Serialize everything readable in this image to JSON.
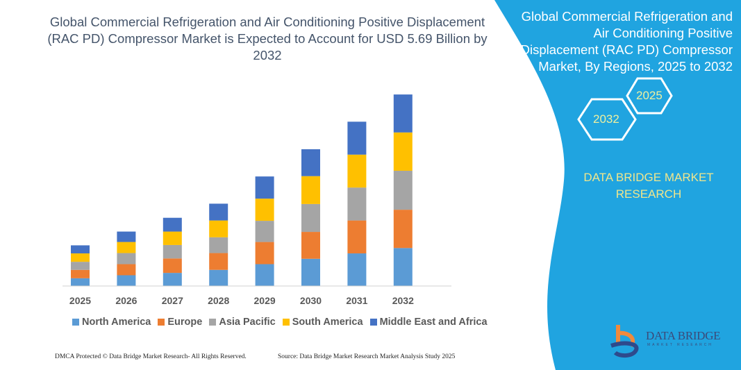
{
  "title": {
    "lines": [
      "Global Commercial Refrigeration and Air Conditioning Positive Displacement",
      "(RAC PD) Compressor Market is Expected to Account for USD 5.69 Billion by",
      "2032"
    ]
  },
  "side_panel": {
    "title_lines": [
      "Global Commercial Refrigeration and",
      "Air Conditioning Positive",
      "Displacement (RAC PD) Compressor",
      "Market, By Regions, 2025 to 2032"
    ],
    "hex_start": "2025",
    "hex_end": "2032",
    "brand_lines": [
      "DATA BRIDGE MARKET",
      "RESEARCH"
    ],
    "logo_text": "DATA BRIDGE",
    "logo_subtext": "MARKET RESEARCH",
    "bg_color": "#20a4e0"
  },
  "footer": {
    "left": "DMCA Protected © Data Bridge Market Research-  All Rights Reserved.",
    "right": "Source: Data Bridge Market Research  Market Analysis Study 2025"
  },
  "chart_data": {
    "type": "bar",
    "stacked": true,
    "title": "",
    "xlabel": "",
    "ylabel": "",
    "grid": false,
    "legend_position": "bottom",
    "categories": [
      "2025",
      "2026",
      "2027",
      "2028",
      "2029",
      "2030",
      "2031",
      "2032"
    ],
    "series": [
      {
        "name": "North America",
        "color": "#5b9bd5",
        "values": [
          0.22,
          0.31,
          0.38,
          0.47,
          0.64,
          0.8,
          0.96,
          1.12
        ]
      },
      {
        "name": "Europe",
        "color": "#ed7d31",
        "values": [
          0.25,
          0.33,
          0.43,
          0.5,
          0.66,
          0.8,
          0.98,
          1.14
        ]
      },
      {
        "name": "Asia Pacific",
        "color": "#a5a5a5",
        "values": [
          0.24,
          0.33,
          0.4,
          0.47,
          0.63,
          0.83,
          0.98,
          1.16
        ]
      },
      {
        "name": "South America",
        "color": "#ffc000",
        "values": [
          0.25,
          0.33,
          0.4,
          0.5,
          0.66,
          0.83,
          0.98,
          1.14
        ]
      },
      {
        "name": "Middle East and Africa",
        "color": "#4472c4",
        "values": [
          0.24,
          0.31,
          0.41,
          0.5,
          0.66,
          0.8,
          0.98,
          1.13
        ]
      }
    ]
  }
}
